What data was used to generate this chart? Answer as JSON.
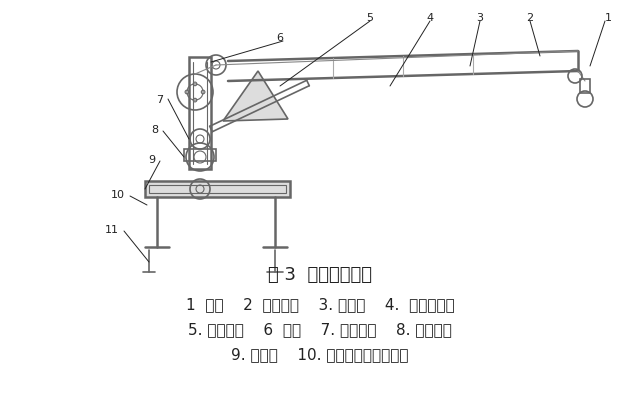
{
  "title": "图 3  直臂式起重机",
  "caption_lines": [
    "1  吊钩    2  吊臂总成    3. 钢丝绳    4.  变幅液压缸",
    "5. 卷筒机构    6  立柱    7. 旋转接头    8. 回转支承",
    "9. 横梁组    10. 支腿机构及控制系统"
  ],
  "bg_color": "#ffffff",
  "line_color": "#666666",
  "dark_color": "#222222",
  "title_fontsize": 13,
  "caption_fontsize": 11,
  "num_fontsize": 8
}
